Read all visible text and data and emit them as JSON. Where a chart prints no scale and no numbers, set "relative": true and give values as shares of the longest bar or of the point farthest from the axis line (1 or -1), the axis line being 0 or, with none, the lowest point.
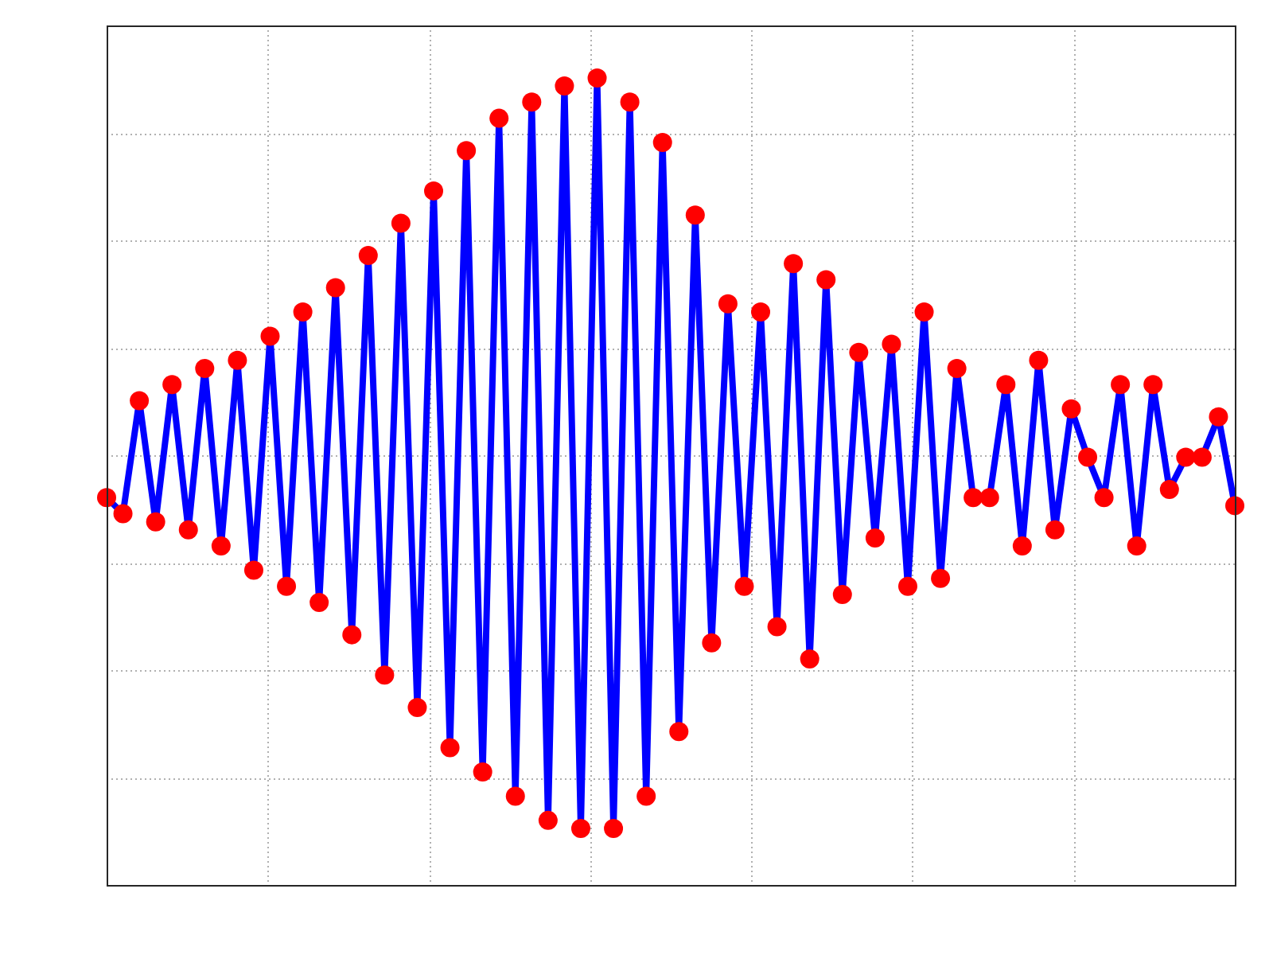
{
  "chart_data": {
    "type": "line",
    "relative": true,
    "grid": true,
    "legend": false,
    "marker": "circle",
    "line_style": "solid",
    "categories": [
      null,
      null,
      null,
      null,
      null,
      null,
      null,
      null,
      null,
      null,
      null,
      null,
      null,
      null,
      null,
      null,
      null,
      null,
      null,
      null,
      null,
      null,
      null,
      null,
      null,
      null,
      null,
      null,
      null,
      null,
      null,
      null,
      null,
      null,
      null,
      null,
      null,
      null,
      null,
      null,
      null,
      null,
      null,
      null,
      null,
      null,
      null,
      null,
      null,
      null,
      null,
      null,
      null,
      null,
      null,
      null,
      null,
      null,
      null,
      null,
      null,
      null,
      null,
      null,
      null,
      null,
      null,
      null,
      null,
      null
    ],
    "series": [
      {
        "color": "#0000ff",
        "colors": [
          "#ff0000",
          "#ff0000",
          "#ff0000",
          "#ff0000",
          "#ff0000",
          "#ff0000",
          "#ff0000",
          "#ff0000",
          "#ff0000",
          "#ff0000",
          "#ff0000",
          "#ff0000",
          "#ff0000",
          "#ff0000",
          "#ff0000",
          "#ff0000",
          "#ff0000",
          "#ff0000",
          "#ff0000",
          "#ff0000",
          "#ff0000",
          "#ff0000",
          "#ff0000",
          "#ff0000",
          "#ff0000",
          "#ff0000",
          "#ff0000",
          "#ff0000",
          "#ff0000",
          "#ff0000",
          "#ff0000",
          "#ff0000",
          "#ff0000",
          "#ff0000",
          "#ff0000",
          "#ff0000",
          "#ff0000",
          "#ff0000",
          "#ff0000",
          "#ff0000",
          "#ff0000",
          "#ff0000",
          "#ff0000",
          "#ff0000",
          "#ff0000",
          "#ff0000",
          "#ff0000",
          "#ff0000",
          "#ff0000",
          "#ff0000",
          "#ff0000",
          "#ff0000",
          "#ff0000",
          "#ff0000",
          "#ff0000",
          "#ff0000",
          "#ff0000",
          "#ff0000",
          "#ff0000",
          "#ff0000",
          "#ff0000",
          "#ff0000",
          "#ff0000",
          "#ff0000",
          "#ff0000",
          "#ff0000",
          "#ff0000",
          "#ff0000",
          "#ff0000",
          "#ff0000"
        ],
        "values": [
          0.48,
          0.46,
          0.6,
          0.45,
          0.62,
          0.44,
          0.64,
          0.42,
          0.65,
          0.39,
          0.68,
          0.37,
          0.71,
          0.35,
          0.74,
          0.31,
          0.78,
          0.26,
          0.82,
          0.22,
          0.86,
          0.17,
          0.91,
          0.14,
          0.95,
          0.11,
          0.97,
          0.08,
          0.99,
          0.07,
          1.0,
          0.07,
          0.97,
          0.11,
          0.92,
          0.19,
          0.83,
          0.3,
          0.72,
          0.37,
          0.71,
          0.32,
          0.77,
          0.28,
          0.75,
          0.36,
          0.66,
          0.43,
          0.67,
          0.37,
          0.71,
          0.38,
          0.64,
          0.48,
          0.48,
          0.62,
          0.42,
          0.65,
          0.44,
          0.59,
          0.53,
          0.48,
          0.62,
          0.42,
          0.62,
          0.49,
          0.53,
          0.53,
          0.58,
          0.47
        ]
      }
    ]
  }
}
